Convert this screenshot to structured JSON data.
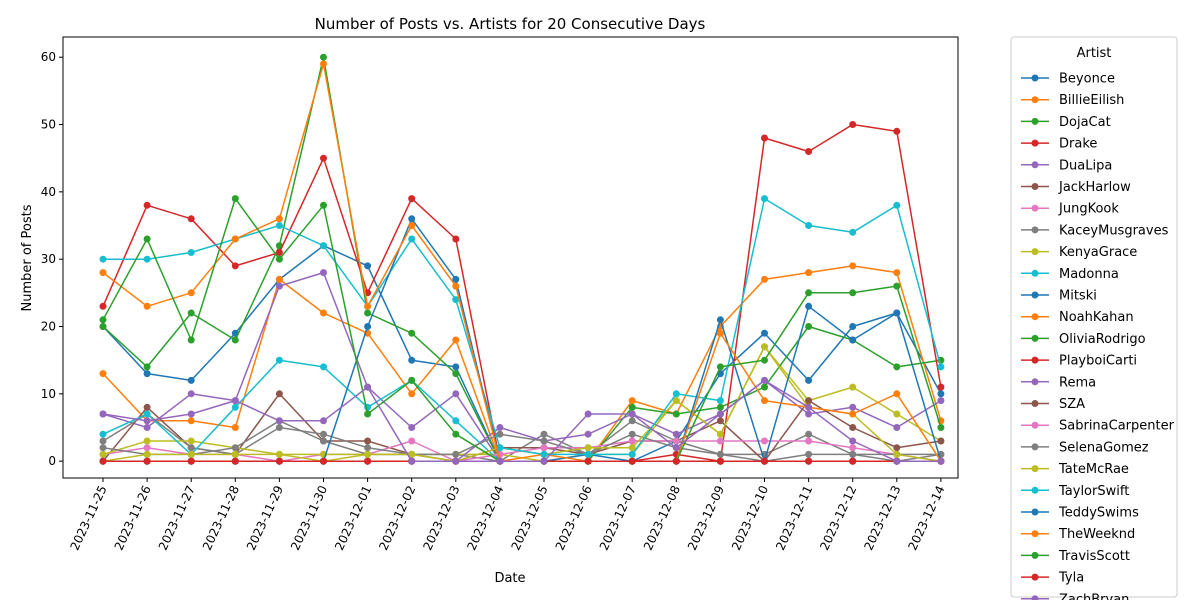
{
  "chart_data": {
    "type": "line",
    "title": "Number of Posts vs. Artists for 20 Consecutive Days",
    "xlabel": "Date",
    "ylabel": "Number of Posts",
    "ylim": [
      -2.5,
      63
    ],
    "yticks": [
      0,
      10,
      20,
      30,
      40,
      50,
      60
    ],
    "grid": false,
    "legend_title": "Artist",
    "legend_position": "outside-right",
    "categories": [
      "2023-11-25",
      "2023-11-26",
      "2023-11-27",
      "2023-11-28",
      "2023-11-29",
      "2023-11-30",
      "2023-12-01",
      "2023-12-02",
      "2023-12-03",
      "2023-12-04",
      "2023-12-05",
      "2023-12-06",
      "2023-12-07",
      "2023-12-08",
      "2023-12-09",
      "2023-12-10",
      "2023-12-11",
      "2023-12-12",
      "2023-12-13",
      "2023-12-14"
    ],
    "series": [
      {
        "name": "Beyonce",
        "color": "#1f77b4",
        "values": [
          20,
          13,
          12,
          19,
          27,
          32,
          29,
          15,
          14,
          0,
          0,
          0,
          0,
          0,
          0,
          0,
          0,
          0,
          0,
          0
        ]
      },
      {
        "name": "BillieEilish",
        "color": "#ff7f0e",
        "values": [
          13,
          6,
          6,
          5,
          27,
          22,
          19,
          10,
          18,
          0,
          0,
          0,
          0,
          0,
          0,
          0,
          0,
          0,
          0,
          0
        ]
      },
      {
        "name": "DojaCat",
        "color": "#2ca02c",
        "values": [
          20,
          14,
          22,
          18,
          32,
          60,
          22,
          19,
          13,
          0,
          0,
          0,
          0,
          0,
          0,
          0,
          0,
          0,
          0,
          0
        ]
      },
      {
        "name": "Drake",
        "color": "#d62728",
        "values": [
          23,
          38,
          36,
          29,
          31,
          45,
          25,
          39,
          33,
          0,
          0,
          0,
          0,
          0,
          0,
          0,
          0,
          0,
          0,
          0
        ]
      },
      {
        "name": "DuaLipa",
        "color": "#9467bd",
        "values": [
          7,
          5,
          10,
          9,
          26,
          28,
          11,
          5,
          10,
          0,
          0,
          0,
          0,
          0,
          0,
          0,
          0,
          0,
          0,
          0
        ]
      },
      {
        "name": "JackHarlow",
        "color": "#8c564b",
        "values": [
          0,
          8,
          2,
          1,
          10,
          3,
          3,
          1,
          0,
          0,
          0,
          0,
          0,
          0,
          0,
          0,
          0,
          0,
          0,
          0
        ]
      },
      {
        "name": "JungKook",
        "color": "#e377c2",
        "values": [
          1,
          2,
          1,
          1,
          0,
          1,
          1,
          3,
          0,
          0,
          0,
          0,
          0,
          0,
          0,
          0,
          0,
          0,
          0,
          0
        ]
      },
      {
        "name": "KaceyMusgraves",
        "color": "#7f7f7f",
        "values": [
          3,
          7,
          2,
          1,
          5,
          4,
          2,
          1,
          1,
          0,
          4,
          1,
          6,
          3,
          1,
          1,
          4,
          1,
          0,
          1
        ]
      },
      {
        "name": "KenyaGrace",
        "color": "#bcbd22",
        "values": [
          1,
          3,
          3,
          2,
          1,
          1,
          1,
          1,
          1,
          1,
          0,
          1,
          1,
          9,
          4,
          17,
          9,
          11,
          7,
          3
        ]
      },
      {
        "name": "Madonna",
        "color": "#17becf",
        "values": [
          4,
          7,
          1,
          8,
          15,
          14,
          8,
          12,
          6,
          0,
          0,
          0,
          0,
          0,
          0,
          0,
          0,
          0,
          0,
          0
        ]
      },
      {
        "name": "Mitski",
        "color": "#1f77b4",
        "values": [
          0,
          0,
          0,
          0,
          0,
          0,
          0,
          0,
          0,
          0,
          0,
          1,
          0,
          3,
          13,
          19,
          12,
          20,
          22,
          10
        ]
      },
      {
        "name": "NoahKahan",
        "color": "#ff7f0e",
        "values": [
          0,
          0,
          0,
          0,
          0,
          0,
          0,
          0,
          0,
          0,
          1,
          0,
          9,
          7,
          20,
          27,
          28,
          29,
          28,
          6
        ]
      },
      {
        "name": "OliviaRodrigo",
        "color": "#2ca02c",
        "values": [
          0,
          0,
          0,
          0,
          0,
          0,
          0,
          0,
          0,
          0,
          0,
          0,
          8,
          7,
          8,
          11,
          20,
          18,
          14,
          15
        ]
      },
      {
        "name": "PlayboiCarti",
        "color": "#d62728",
        "values": [
          0,
          0,
          0,
          0,
          0,
          0,
          0,
          0,
          0,
          0,
          0,
          0,
          0,
          1,
          0,
          48,
          46,
          50,
          49,
          11
        ]
      },
      {
        "name": "Rema",
        "color": "#9467bd",
        "values": [
          0,
          0,
          0,
          0,
          0,
          0,
          0,
          0,
          0,
          5,
          3,
          4,
          7,
          4,
          7,
          12,
          7,
          8,
          5,
          9
        ]
      },
      {
        "name": "SZA",
        "color": "#8c564b",
        "values": [
          0,
          0,
          0,
          0,
          0,
          0,
          0,
          0,
          0,
          2,
          2,
          1,
          3,
          3,
          6,
          0,
          9,
          5,
          2,
          3
        ]
      },
      {
        "name": "SabrinaCarpenter",
        "color": "#e377c2",
        "values": [
          0,
          0,
          0,
          0,
          0,
          0,
          0,
          0,
          0,
          1,
          2,
          2,
          3,
          3,
          3,
          3,
          3,
          2,
          1,
          0
        ]
      },
      {
        "name": "SelenaGomez",
        "color": "#7f7f7f",
        "values": [
          2,
          1,
          1,
          2,
          6,
          3,
          1,
          1,
          1,
          4,
          3,
          1,
          4,
          2,
          1,
          0,
          1,
          1,
          1,
          1
        ]
      },
      {
        "name": "TateMcRae",
        "color": "#bcbd22",
        "values": [
          0,
          1,
          1,
          1,
          1,
          0,
          1,
          1,
          0,
          2,
          1,
          2,
          2,
          9,
          4,
          17,
          8,
          7,
          1,
          0
        ]
      },
      {
        "name": "TaylorSwift",
        "color": "#17becf",
        "values": [
          30,
          30,
          31,
          33,
          35,
          32,
          23,
          33,
          24,
          2,
          1,
          1,
          1,
          10,
          9,
          39,
          35,
          34,
          38,
          14
        ]
      },
      {
        "name": "TeddySwims",
        "color": "#1f77b4",
        "values": [
          0,
          0,
          0,
          0,
          0,
          0,
          20,
          36,
          27,
          0,
          0,
          0,
          0,
          0,
          21,
          0,
          23,
          18,
          22,
          0
        ]
      },
      {
        "name": "TheWeeknd",
        "color": "#ff7f0e",
        "values": [
          28,
          23,
          25,
          33,
          36,
          59,
          23,
          35,
          26,
          0,
          0,
          0,
          0,
          0,
          19,
          9,
          8,
          7,
          10,
          0
        ]
      },
      {
        "name": "TravisScott",
        "color": "#2ca02c",
        "values": [
          21,
          33,
          18,
          39,
          30,
          38,
          7,
          12,
          4,
          0,
          0,
          0,
          0,
          0,
          14,
          15,
          25,
          25,
          26,
          5
        ]
      },
      {
        "name": "Tyla",
        "color": "#d62728",
        "values": [
          0,
          0,
          0,
          0,
          0,
          0,
          0,
          0,
          0,
          0,
          0,
          0,
          0,
          0,
          0,
          0,
          0,
          0,
          0,
          0
        ]
      },
      {
        "name": "ZachBryan",
        "color": "#9467bd",
        "values": [
          7,
          6,
          7,
          9,
          6,
          6,
          11,
          0,
          0,
          0,
          0,
          7,
          7,
          2,
          7,
          12,
          8,
          3,
          0,
          0
        ]
      }
    ]
  }
}
